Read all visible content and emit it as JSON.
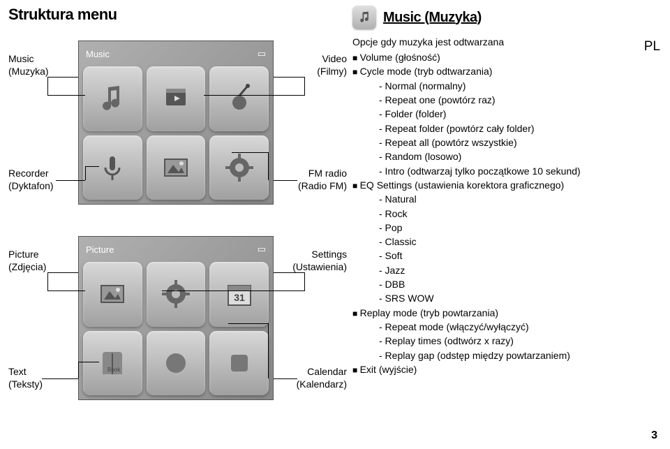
{
  "page": {
    "title": "Struktura menu",
    "lang_tag": "PL",
    "page_number": "3"
  },
  "left_labels": {
    "music": {
      "line1": "Music",
      "line2": "(Muzyka)"
    },
    "recorder": {
      "line1": "Recorder",
      "line2": "(Dyktafon)"
    },
    "picture": {
      "line1": "Picture",
      "line2": "(Zdjęcia)"
    },
    "text": {
      "line1": "Text",
      "line2": "(Teksty)"
    }
  },
  "right_labels": {
    "video": {
      "line1": "Video",
      "line2": "(Filmy)"
    },
    "fm": {
      "line1": "FM radio",
      "line2": "(Radio FM)"
    },
    "settings": {
      "line1": "Settings",
      "line2": "(Ustawienia)"
    },
    "calendar": {
      "line1": "Calendar",
      "line2": "(Kalendarz)"
    }
  },
  "screenshots": {
    "top_header_left": "Music",
    "bottom_header_left": "Picture"
  },
  "right_col": {
    "title": "Music (Muzyka)",
    "intro": "Opcje gdy muzyka jest odtwarzana",
    "items": [
      {
        "l": 1,
        "t": "Volume (głośność)"
      },
      {
        "l": 1,
        "t": "Cycle mode (tryb odtwarzania)"
      },
      {
        "l": 2,
        "t": "- Normal (normalny)"
      },
      {
        "l": 2,
        "t": "- Repeat one (powtórz raz)"
      },
      {
        "l": 2,
        "t": "- Folder (folder)"
      },
      {
        "l": 2,
        "t": "- Repeat folder (powtórz cały folder)"
      },
      {
        "l": 2,
        "t": "- Repeat all (powtórz wszystkie)"
      },
      {
        "l": 2,
        "t": "- Random (losowo)"
      },
      {
        "l": 2,
        "t": "- Intro (odtwarzaj tylko początkowe 10 sekund)"
      },
      {
        "l": 1,
        "t": "EQ Settings (ustawienia korektora graficznego)"
      },
      {
        "l": 2,
        "t": "- Natural"
      },
      {
        "l": 2,
        "t": "- Rock"
      },
      {
        "l": 2,
        "t": "- Pop"
      },
      {
        "l": 2,
        "t": "- Classic"
      },
      {
        "l": 2,
        "t": "- Soft"
      },
      {
        "l": 2,
        "t": "- Jazz"
      },
      {
        "l": 2,
        "t": "- DBB"
      },
      {
        "l": 2,
        "t": "- SRS WOW"
      },
      {
        "l": 1,
        "t": "Replay mode (tryb powtarzania)"
      },
      {
        "l": 2,
        "t": "- Repeat mode (włączyć/wyłączyć)"
      },
      {
        "l": 2,
        "t": "- Replay times (odtwórz x razy)"
      },
      {
        "l": 2,
        "t": "- Replay gap (odstęp między powtarzaniem)"
      },
      {
        "l": 1,
        "t": "Exit (wyjście)"
      }
    ]
  },
  "colors": {
    "text": "#000000",
    "bg": "#ffffff",
    "screenshot_bg_1": "#b0b0b0",
    "screenshot_bg_2": "#888888",
    "icon_bg_1": "#d8d8d8",
    "icon_bg_2": "#a0a0a0"
  }
}
